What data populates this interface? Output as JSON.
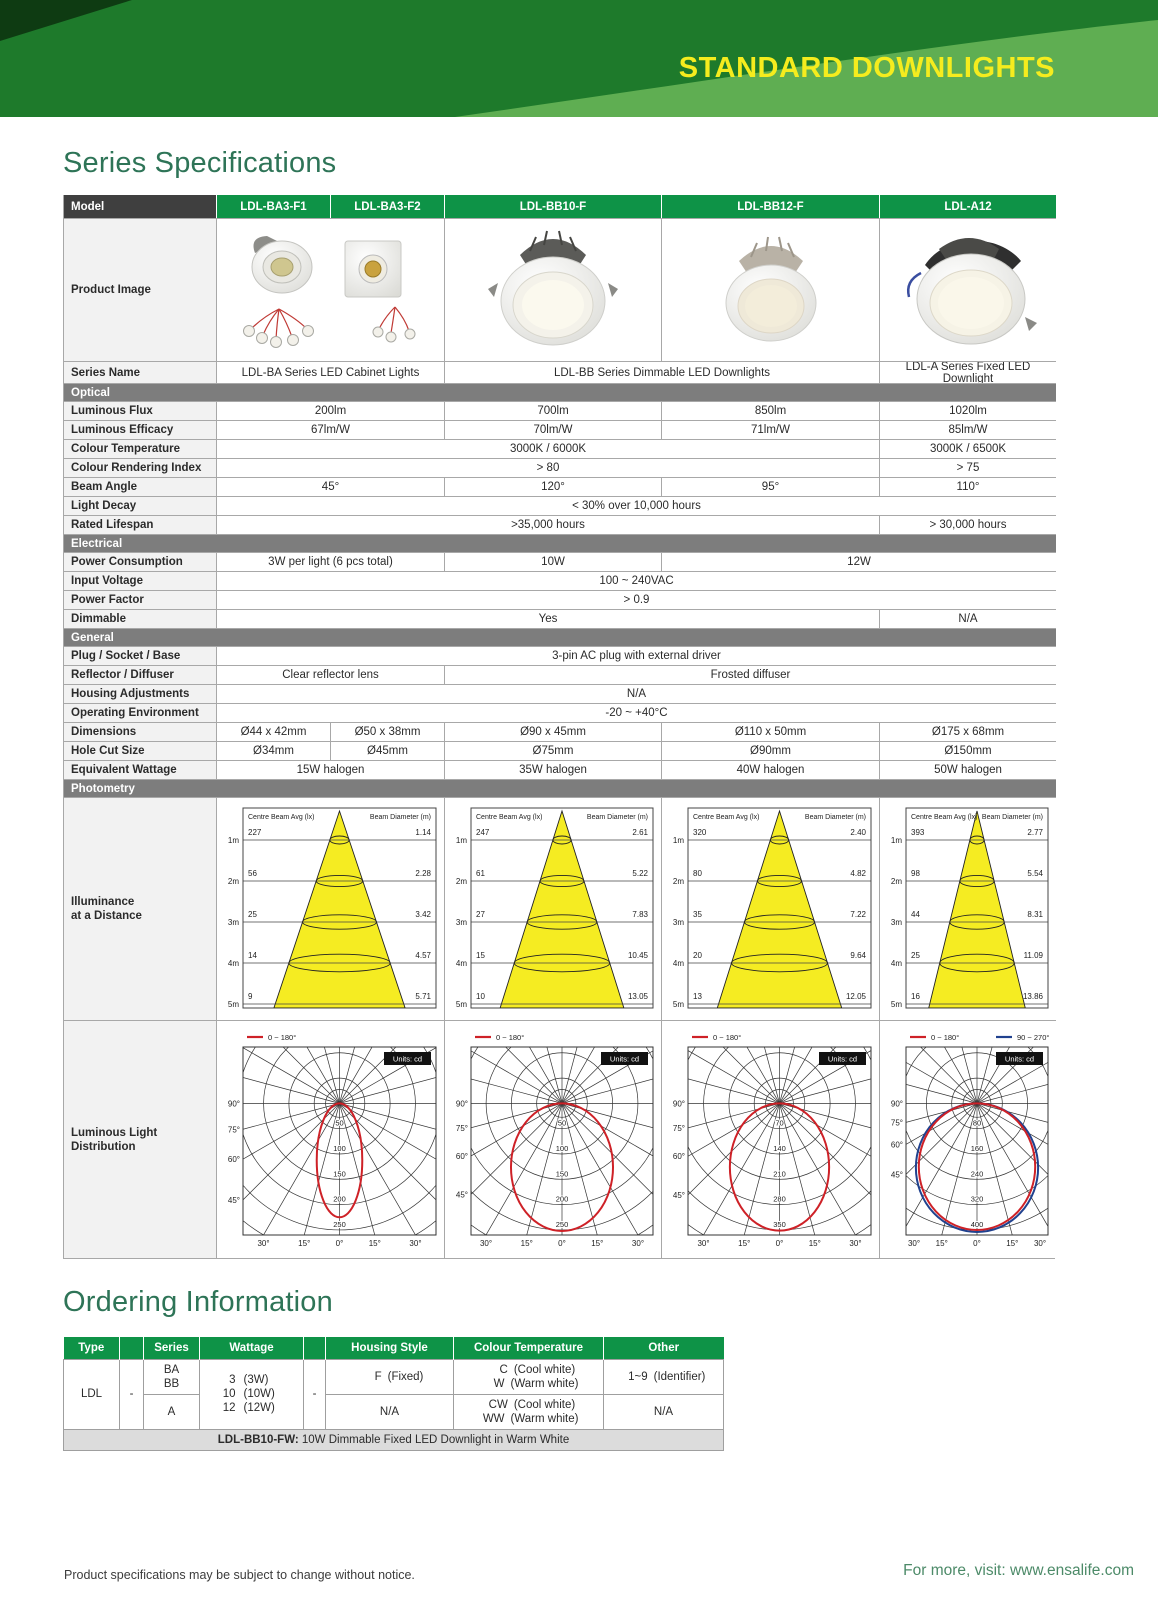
{
  "page": {
    "banner_title": "STANDARD DOWNLIGHTS",
    "section1_title": "Series Specifications",
    "section2_title": "Ordering Information",
    "footer_left": "Product specifications may be subject to change without notice.",
    "footer_right": "For more, visit: www.ensalife.com"
  },
  "colors": {
    "brand_green": "#0e9347",
    "banner_mid_green": "#1e7a2b",
    "banner_dark_green": "#0e3b12",
    "banner_light_green": "#5fae52",
    "accent_yellow": "#f5ec1e",
    "heading_green": "#2e7457",
    "section_bar_gray": "#7d7d7d",
    "model_header_gray": "#3f3f3f",
    "label_cell_gray": "#f2f2f2",
    "example_row_gray": "#dcdcdc",
    "cone_yellow": "#f5ec22",
    "polar_red": "#ce2127",
    "polar_navy": "#20418e"
  },
  "spec_table": {
    "model_label": "Model",
    "models": [
      "LDL-BA3-F1",
      "LDL-BA3-F2",
      "LDL-BB10-F",
      "LDL-BB12-F",
      "LDL-A12"
    ],
    "product_image_label": "Product Image",
    "product_images": [
      "ldl-ba3-f1-and-f2-cabinet-light-kits",
      "ldl-bb10-f-downlight",
      "ldl-bb12-f-downlight",
      "ldl-a12-downlight"
    ],
    "series_name_label": "Series Name",
    "series_names": [
      "LDL-BA Series LED Cabinet Lights",
      "LDL-BB Series Dimmable LED Downlights",
      "LDL-A Series Fixed LED Downlight"
    ],
    "rows": [
      {
        "section": "Optical"
      },
      {
        "label": "Luminous Flux",
        "cells": [
          {
            "t": "200lm",
            "s": 2
          },
          {
            "t": "700lm",
            "s": 1
          },
          {
            "t": "850lm",
            "s": 1
          },
          {
            "t": "1020lm",
            "s": 1
          }
        ]
      },
      {
        "label": "Luminous Efficacy",
        "cells": [
          {
            "t": "67lm/W",
            "s": 2
          },
          {
            "t": "70lm/W",
            "s": 1
          },
          {
            "t": "71lm/W",
            "s": 1
          },
          {
            "t": "85lm/W",
            "s": 1
          }
        ]
      },
      {
        "label": "Colour Temperature",
        "cells": [
          {
            "t": "3000K / 6000K",
            "s": 4
          },
          {
            "t": "3000K / 6500K",
            "s": 1
          }
        ]
      },
      {
        "label": "Colour Rendering Index",
        "cells": [
          {
            "t": "> 80",
            "s": 4
          },
          {
            "t": "> 75",
            "s": 1
          }
        ]
      },
      {
        "label": "Beam Angle",
        "cells": [
          {
            "t": "45°",
            "s": 2
          },
          {
            "t": "120°",
            "s": 1
          },
          {
            "t": "95°",
            "s": 1
          },
          {
            "t": "110°",
            "s": 1
          }
        ]
      },
      {
        "label": "Light Decay",
        "cells": [
          {
            "t": "< 30% over 10,000 hours",
            "s": 5
          }
        ]
      },
      {
        "label": "Rated Lifespan",
        "cells": [
          {
            "t": ">35,000 hours",
            "s": 4
          },
          {
            "t": "> 30,000 hours",
            "s": 1
          }
        ]
      },
      {
        "section": "Electrical"
      },
      {
        "label": "Power Consumption",
        "cells": [
          {
            "t": "3W per light (6 pcs total)",
            "s": 2
          },
          {
            "t": "10W",
            "s": 1
          },
          {
            "t": "12W",
            "s": 2
          }
        ]
      },
      {
        "label": "Input Voltage",
        "cells": [
          {
            "t": "100 ~ 240VAC",
            "s": 5
          }
        ]
      },
      {
        "label": "Power Factor",
        "cells": [
          {
            "t": "> 0.9",
            "s": 5
          }
        ]
      },
      {
        "label": "Dimmable",
        "cells": [
          {
            "t": "Yes",
            "s": 4
          },
          {
            "t": "N/A",
            "s": 1
          }
        ]
      },
      {
        "section": "General"
      },
      {
        "label": "Plug / Socket / Base",
        "cells": [
          {
            "t": "3-pin AC plug with external driver",
            "s": 5
          }
        ]
      },
      {
        "label": "Reflector / Diffuser",
        "cells": [
          {
            "t": "Clear reflector lens",
            "s": 2
          },
          {
            "t": "Frosted diffuser",
            "s": 3
          }
        ]
      },
      {
        "label": "Housing Adjustments",
        "cells": [
          {
            "t": "N/A",
            "s": 5
          }
        ]
      },
      {
        "label": "Operating Environment",
        "cells": [
          {
            "t": "-20 ~ +40°C",
            "s": 5
          }
        ]
      },
      {
        "label": "Dimensions",
        "cells": [
          {
            "t": "Ø44 x 42mm",
            "s": 1
          },
          {
            "t": "Ø50 x 38mm",
            "s": 1
          },
          {
            "t": "Ø90 x 45mm",
            "s": 1
          },
          {
            "t": "Ø110 x 50mm",
            "s": 1
          },
          {
            "t": "Ø175 x 68mm",
            "s": 1
          }
        ]
      },
      {
        "label": "Hole Cut Size",
        "cells": [
          {
            "t": "Ø34mm",
            "s": 1
          },
          {
            "t": "Ø45mm",
            "s": 1
          },
          {
            "t": "Ø75mm",
            "s": 1
          },
          {
            "t": "Ø90mm",
            "s": 1
          },
          {
            "t": "Ø150mm",
            "s": 1
          }
        ]
      },
      {
        "label": "Equivalent Wattage",
        "cells": [
          {
            "t": "15W halogen",
            "s": 2
          },
          {
            "t": "35W halogen",
            "s": 1
          },
          {
            "t": "40W halogen",
            "s": 1
          },
          {
            "t": "50W halogen",
            "s": 1
          }
        ]
      },
      {
        "section": "Photometry"
      }
    ],
    "illuminance": {
      "label_lines": [
        "Illuminance",
        "at a Distance"
      ],
      "header_left": "Centre Beam Avg (lx)",
      "header_right": "Beam Diameter (m)",
      "distance_labels": [
        "1m",
        "2m",
        "3m",
        "4m",
        "5m"
      ],
      "charts": [
        {
          "model": "ldl-ba",
          "span": 2,
          "lux": [
            "227",
            "56",
            "25",
            "14",
            "9"
          ],
          "beam": [
            "1.14",
            "2.28",
            "3.42",
            "4.57",
            "5.71"
          ]
        },
        {
          "model": "ldl-bb10",
          "span": 1,
          "lux": [
            "247",
            "61",
            "27",
            "15",
            "10"
          ],
          "beam": [
            "2.61",
            "5.22",
            "7.83",
            "10.45",
            "13.05"
          ]
        },
        {
          "model": "ldl-bb12",
          "span": 1,
          "lux": [
            "320",
            "80",
            "35",
            "20",
            "13"
          ],
          "beam": [
            "2.40",
            "4.82",
            "7.22",
            "9.64",
            "12.05"
          ]
        },
        {
          "model": "ldl-a12",
          "span": 1,
          "lux": [
            "393",
            "98",
            "44",
            "25",
            "16"
          ],
          "beam": [
            "2.77",
            "5.54",
            "8.31",
            "11.09",
            "13.86"
          ]
        }
      ]
    },
    "distribution": {
      "label_lines": [
        "Luminous Light",
        "Distribution"
      ],
      "units_label": "Units: cd",
      "left_angles": [
        "90°",
        "75°",
        "60°",
        "45°"
      ],
      "bottom_angles": [
        "30°",
        "15°",
        "0°",
        "15°",
        "30°"
      ],
      "charts": [
        {
          "model": "ldl-ba",
          "span": 2,
          "legends": [
            "0 ~ 180°"
          ],
          "rings": [
            50,
            100,
            150,
            200,
            250
          ],
          "peak_cd": 225,
          "width_ratio": 0.4
        },
        {
          "model": "ldl-bb10",
          "span": 1,
          "legends": [
            "0 ~ 180°"
          ],
          "rings": [
            50,
            100,
            150,
            200,
            250
          ],
          "peak_cd": 252,
          "width_ratio": 0.8
        },
        {
          "model": "ldl-bb12",
          "span": 1,
          "legends": [
            "0 ~ 180°"
          ],
          "rings": [
            70,
            140,
            210,
            280,
            350
          ],
          "peak_cd": 352,
          "width_ratio": 0.78
        },
        {
          "model": "ldl-a12",
          "span": 1,
          "legends": [
            "0 ~ 180°",
            "90 ~ 270°"
          ],
          "rings": [
            80,
            160,
            240,
            320,
            400
          ],
          "peak_cd": 400,
          "width_ratio": 0.92
        }
      ]
    }
  },
  "ordering": {
    "headers": [
      "Type",
      "",
      "Series",
      "Wattage",
      "",
      "Housing Style",
      "Colour Temperature",
      "Other"
    ],
    "type": "LDL",
    "dash1": "-",
    "dash2": "-",
    "series_row1": [
      "BA",
      "BB"
    ],
    "series_row2": "A",
    "wattage_lines": [
      [
        "3",
        "(3W)"
      ],
      [
        "10",
        "(10W)"
      ],
      [
        "12",
        "(12W)"
      ]
    ],
    "housing_row1": [
      [
        "F",
        "(Fixed)"
      ]
    ],
    "housing_row2": "N/A",
    "colour_row1": [
      [
        "C",
        "(Cool white)"
      ],
      [
        "W",
        "(Warm white)"
      ]
    ],
    "colour_row2": [
      [
        "CW",
        "(Cool white)"
      ],
      [
        "WW",
        "(Warm white)"
      ]
    ],
    "other_row1": [
      [
        "1~9",
        "(Identifier)"
      ]
    ],
    "other_row2": "N/A",
    "example_code": "LDL-BB10-FW:",
    "example_text": " 10W Dimmable Fixed LED Downlight in Warm White"
  }
}
